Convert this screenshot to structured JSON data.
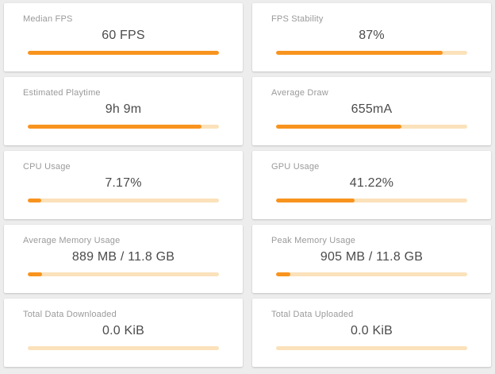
{
  "theme": {
    "page_background": "#EDEDEE",
    "card_background": "#FFFFFF",
    "title_color": "#9A9A9A",
    "value_color": "#4B4B4B",
    "progress_fill_color": "#F8941E",
    "progress_track_color": "#FBE2BB"
  },
  "cards": [
    {
      "title": "Median FPS",
      "value": "60 FPS",
      "progress_pct": 100
    },
    {
      "title": "FPS Stability",
      "value": "87%",
      "progress_pct": 87
    },
    {
      "title": "Estimated Playtime",
      "value": "9h 9m",
      "progress_pct": 91
    },
    {
      "title": "Average Draw",
      "value": "655mA",
      "progress_pct": 65.5
    },
    {
      "title": "CPU Usage",
      "value": "7.17%",
      "progress_pct": 7.17
    },
    {
      "title": "GPU Usage",
      "value": "41.22%",
      "progress_pct": 41.22
    },
    {
      "title": "Average Memory Usage",
      "value": "889 MB / 11.8 GB",
      "progress_pct": 7.4
    },
    {
      "title": "Peak Memory Usage",
      "value": "905 MB / 11.8 GB",
      "progress_pct": 7.5
    },
    {
      "title": "Total Data Downloaded",
      "value": "0.0 KiB",
      "progress_pct": 0
    },
    {
      "title": "Total Data Uploaded",
      "value": "0.0 KiB",
      "progress_pct": 0
    }
  ]
}
